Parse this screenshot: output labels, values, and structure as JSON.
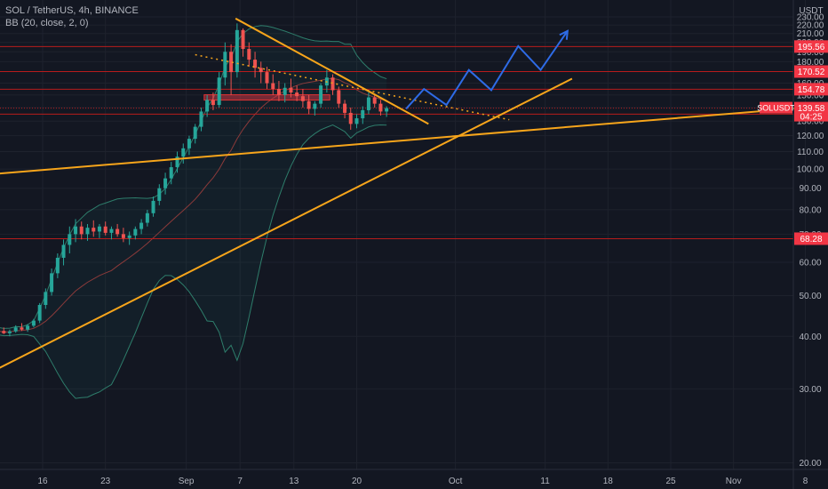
{
  "header": {
    "symbol_line": "SOL / TetherUS, 4h, BINANCE",
    "indicator_line": "BB (20, close, 2, 0)"
  },
  "chart_data": {
    "type": "candlestick",
    "symbol": "SOLUSDT",
    "interval": "4h",
    "exchange": "BINANCE",
    "currency": "USDT",
    "y_scale": "log",
    "ylim": [
      18,
      235
    ],
    "y_ticks": [
      230,
      220,
      210,
      200,
      190,
      180,
      160,
      150,
      140,
      130,
      120,
      110,
      100,
      90,
      80,
      70,
      60,
      50,
      40,
      30,
      20
    ],
    "x_ticks": [
      "16",
      "23",
      "Sep",
      "7",
      "13",
      "20",
      "Oct",
      "11",
      "18",
      "25",
      "Nov",
      "8"
    ],
    "x_tick_days": [
      16,
      23,
      32,
      38,
      44,
      51,
      62,
      72,
      79,
      86,
      93,
      101
    ],
    "grid": true,
    "colors": {
      "up": "#26a69a",
      "down": "#ef5350",
      "bb": "#2e7d6b",
      "trend": "#f7a51b",
      "projection": "#2e6be6",
      "level": "#b71c1c",
      "label_red": "#f23645"
    },
    "price_levels": [
      {
        "price": 195.56,
        "label": "195.56"
      },
      {
        "price": 170.52,
        "label": "170.52"
      },
      {
        "price": 154.78,
        "label": "154.78"
      },
      {
        "price": 135.08,
        "label": "135.08"
      },
      {
        "price": 68.28,
        "label": "68.28"
      }
    ],
    "last_price": {
      "symbol": "SOLUSDT",
      "price": "139.58",
      "countdown": "04:25"
    },
    "trendlines": [
      {
        "style": "solid",
        "from": [
          11,
          97.5
        ],
        "to": [
          101,
          140
        ]
      },
      {
        "style": "solid",
        "from": [
          11,
          33.5
        ],
        "to": [
          75,
          164
        ]
      },
      {
        "style": "solid",
        "from": [
          37.5,
          228
        ],
        "to": [
          59,
          128
        ]
      },
      {
        "style": "dotted",
        "from": [
          33,
          187
        ],
        "to": [
          68,
          131
        ]
      }
    ],
    "projection_path": [
      [
        56.5,
        139
      ],
      [
        58.5,
        155
      ],
      [
        61,
        142
      ],
      [
        63.5,
        172
      ],
      [
        66,
        154
      ],
      [
        69,
        196
      ],
      [
        71.5,
        172
      ],
      [
        74.5,
        213
      ]
    ],
    "horizontal_zone": {
      "price": 148,
      "from_day": 34,
      "to_day": 48
    },
    "candles": [
      [
        11,
        40.9,
        41.6,
        40.2,
        41.2
      ],
      [
        11.67,
        41.2,
        42,
        40.5,
        40.7
      ],
      [
        12.33,
        40.7,
        41.5,
        40,
        41.1
      ],
      [
        13,
        41.1,
        42.5,
        40.8,
        42
      ],
      [
        13.67,
        42,
        43,
        41.2,
        41.5
      ],
      [
        14.33,
        41.5,
        42.8,
        41,
        42.4
      ],
      [
        15,
        42.4,
        44,
        42,
        43.6
      ],
      [
        15.67,
        43.6,
        48,
        43,
        47.5
      ],
      [
        16.33,
        47.5,
        52,
        46.5,
        51
      ],
      [
        17,
        51,
        58,
        50,
        56.5
      ],
      [
        17.67,
        56.5,
        63,
        55,
        61.5
      ],
      [
        18.33,
        61.5,
        68,
        59,
        66
      ],
      [
        19,
        66,
        73,
        63,
        70
      ],
      [
        19.67,
        70,
        76,
        67,
        73
      ],
      [
        20.33,
        73,
        75,
        68,
        70
      ],
      [
        21,
        70,
        74,
        67.5,
        72.5
      ],
      [
        21.67,
        72.5,
        75.5,
        69,
        71
      ],
      [
        22.33,
        71,
        74,
        68.5,
        73
      ],
      [
        23,
        73,
        75,
        69.5,
        70.5
      ],
      [
        23.67,
        70.5,
        73,
        68,
        72
      ],
      [
        24.33,
        72,
        74,
        69,
        70
      ],
      [
        25,
        70,
        72.5,
        67,
        68.5
      ],
      [
        25.67,
        68.5,
        71,
        66,
        69.5
      ],
      [
        26.33,
        69.5,
        73,
        68,
        72
      ],
      [
        27,
        72,
        76,
        70,
        74.5
      ],
      [
        27.67,
        74.5,
        80,
        73,
        78.5
      ],
      [
        28.33,
        78.5,
        86,
        77,
        84
      ],
      [
        29,
        84,
        92,
        82,
        90
      ],
      [
        29.67,
        90,
        98,
        87,
        95
      ],
      [
        30.33,
        95,
        104,
        92,
        101
      ],
      [
        31,
        101,
        110,
        98,
        107
      ],
      [
        31.67,
        107,
        115,
        103,
        112
      ],
      [
        32.33,
        112,
        120,
        108,
        118
      ],
      [
        33,
        118,
        128,
        115,
        126
      ],
      [
        33.67,
        126,
        140,
        123,
        137
      ],
      [
        34.33,
        137,
        150,
        133,
        146
      ],
      [
        35,
        146,
        152,
        138,
        142
      ],
      [
        35.67,
        142,
        170,
        140,
        165
      ],
      [
        36.33,
        165,
        200,
        158,
        190
      ],
      [
        37,
        190,
        198,
        150,
        170
      ],
      [
        37.67,
        170,
        222,
        165,
        214
      ],
      [
        38.33,
        214,
        216,
        185,
        193
      ],
      [
        39,
        193,
        200,
        175,
        182
      ],
      [
        39.67,
        182,
        190,
        165,
        174
      ],
      [
        40.33,
        174,
        180,
        160,
        170
      ],
      [
        41,
        170,
        175,
        155,
        160
      ],
      [
        41.67,
        160,
        168,
        150,
        155
      ],
      [
        42.33,
        155,
        162,
        145,
        150
      ],
      [
        43,
        150,
        160,
        144,
        156
      ],
      [
        43.67,
        156,
        164,
        148,
        152
      ],
      [
        44.33,
        152,
        158,
        145,
        149
      ],
      [
        45,
        149,
        155,
        140,
        145
      ],
      [
        45.67,
        145,
        150,
        135,
        139
      ],
      [
        46.33,
        139,
        145,
        134,
        143
      ],
      [
        47,
        143,
        160,
        140,
        158
      ],
      [
        47.67,
        158,
        172,
        152,
        165
      ],
      [
        48.33,
        165,
        168,
        150,
        154
      ],
      [
        49,
        154,
        157,
        140,
        143
      ],
      [
        49.67,
        143,
        146,
        132,
        136
      ],
      [
        50.33,
        136,
        140,
        124,
        128
      ],
      [
        51,
        128,
        135,
        125,
        132
      ],
      [
        51.67,
        132,
        141,
        128,
        138
      ],
      [
        52.33,
        138,
        152,
        135,
        148
      ],
      [
        53,
        148,
        151,
        140,
        143
      ],
      [
        53.67,
        143,
        146,
        134,
        137
      ],
      [
        54.33,
        137,
        141,
        133,
        139.58
      ]
    ]
  }
}
